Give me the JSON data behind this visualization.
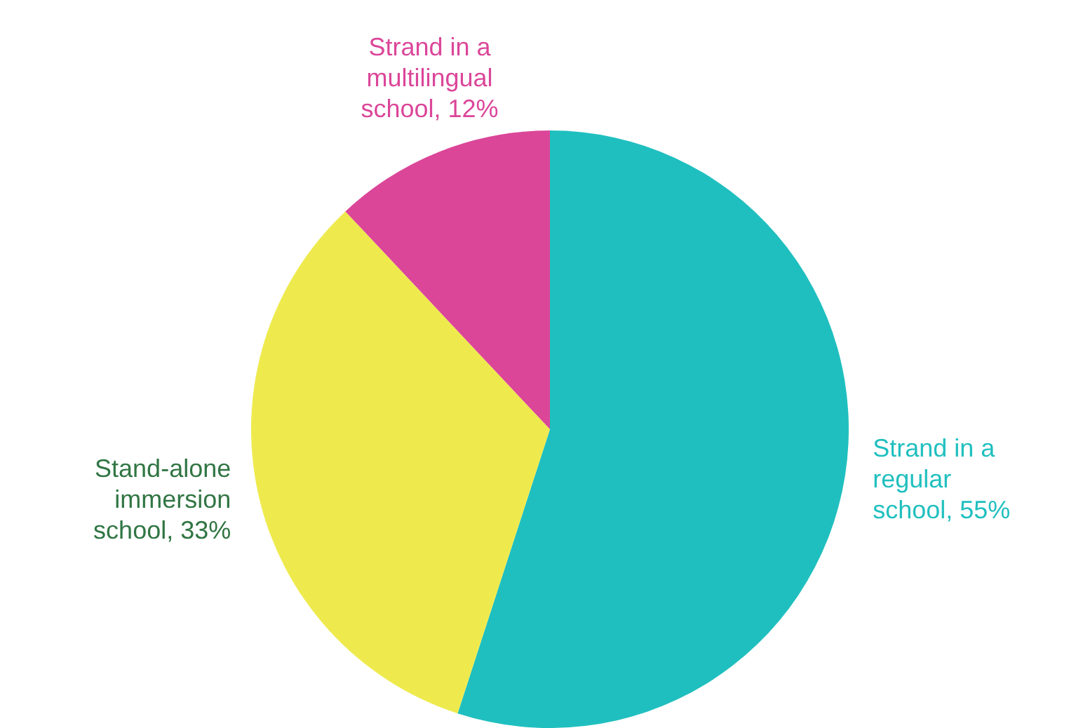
{
  "chart_data": {
    "type": "pie",
    "categories": [
      "Strand in a regular school",
      "Stand-alone immersion school",
      "Strand in a multilingual school"
    ],
    "values": [
      55,
      33,
      12
    ],
    "value_labels": [
      ", 55%",
      ", 33%",
      ", 12%"
    ],
    "colors": [
      "#20bfbf",
      "#eeea4e",
      "#db4699"
    ],
    "legend": false
  }
}
